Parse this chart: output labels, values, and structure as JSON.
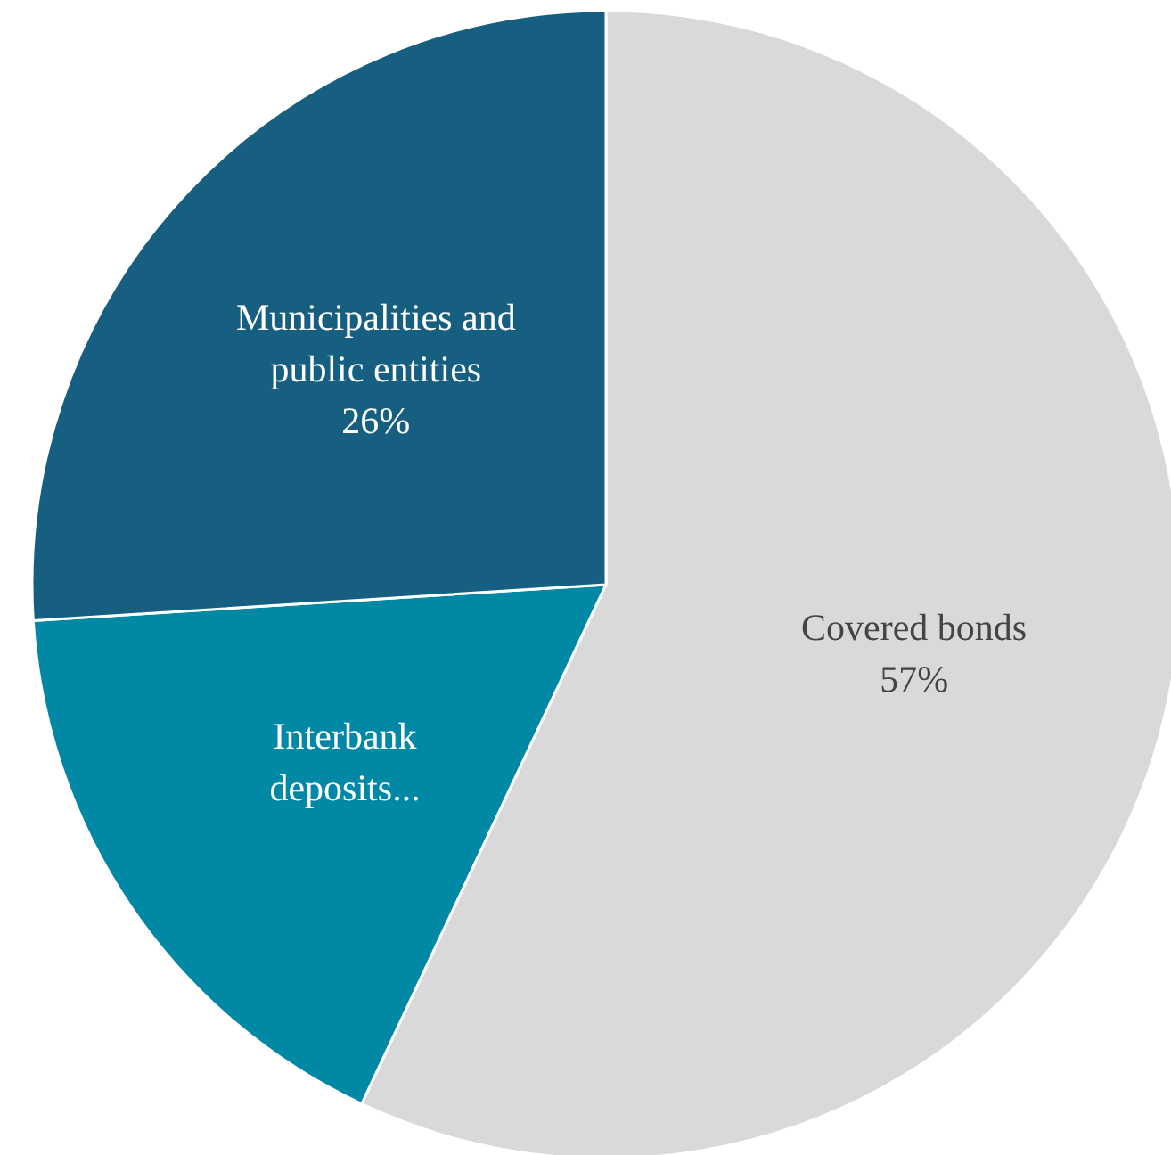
{
  "chart_data": {
    "type": "pie",
    "categories": [
      "Covered bonds",
      "Interbank deposits...",
      "Municipalities and public entities"
    ],
    "values": [
      57,
      17,
      26
    ],
    "value_labels": [
      "57%",
      null,
      "26%"
    ],
    "colors": [
      "#d9d9d9",
      "#0088a5",
      "#165f80"
    ]
  }
}
